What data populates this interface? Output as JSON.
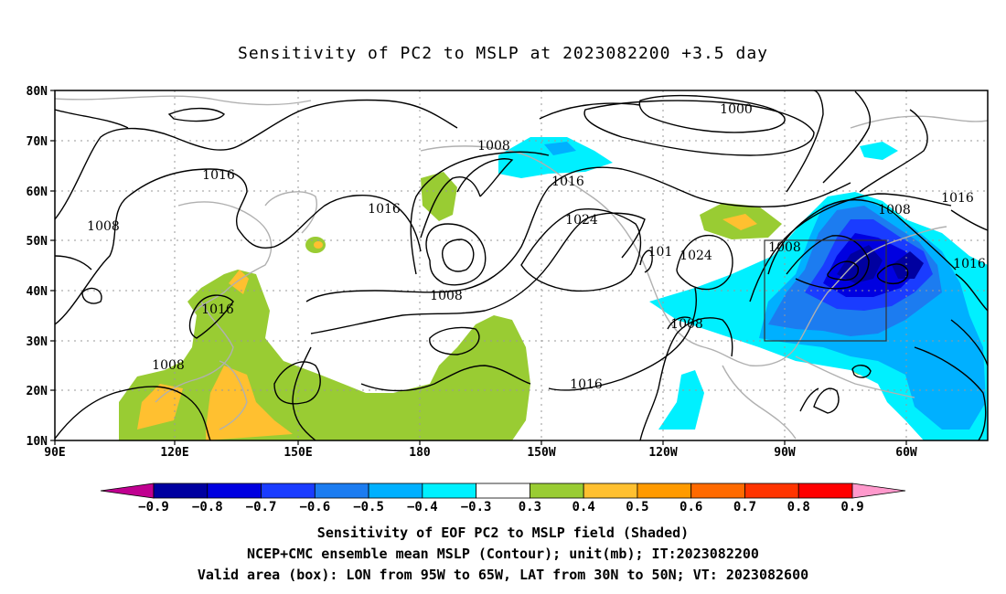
{
  "title": "Sensitivity of PC2 to MSLP at 2023082200 +3.5 day",
  "lat_ticks": [
    "80N",
    "70N",
    "60N",
    "50N",
    "40N",
    "30N",
    "20N",
    "10N"
  ],
  "lon_ticks": [
    "90E",
    "120E",
    "150E",
    "180",
    "150W",
    "120W",
    "90W",
    "60W"
  ],
  "contour_labels": [
    {
      "text": "1000"
    },
    {
      "text": "1008"
    },
    {
      "text": "1016"
    },
    {
      "text": "1008"
    },
    {
      "text": "1016"
    },
    {
      "text": "1016"
    },
    {
      "text": "1008"
    },
    {
      "text": "1016"
    },
    {
      "text": "1024"
    },
    {
      "text": "1008"
    },
    {
      "text": "101"
    },
    {
      "text": "1024"
    },
    {
      "text": "1016"
    },
    {
      "text": "1008"
    },
    {
      "text": "1016"
    },
    {
      "text": "1008"
    },
    {
      "text": "1008"
    },
    {
      "text": "1016"
    }
  ],
  "colorbar": {
    "colors": [
      "#c00090",
      "#0000a0",
      "#0000e0",
      "#1a3cff",
      "#1c7cf0",
      "#00b0ff",
      "#00f0ff",
      "#ffffff",
      "#99cc33",
      "#ffc030",
      "#ff9a00",
      "#ff6a00",
      "#ff3400",
      "#ff0000",
      "#ff99cc"
    ],
    "labels": [
      "-0.9",
      "-0.8",
      "-0.7",
      "-0.6",
      "-0.5",
      "-0.4",
      "-0.3",
      "0.3",
      "0.4",
      "0.5",
      "0.6",
      "0.7",
      "0.8",
      "0.9"
    ]
  },
  "caption": {
    "line1": "Sensitivity of EOF PC2 to MSLP field (Shaded)",
    "line2": "NCEP+CMC ensemble mean MSLP (Contour); unit(mb); IT:2023082200",
    "line3": "Valid area (box): LON from 95W to 65W, LAT from 30N to 50N; VT: 2023082600"
  },
  "valid_box": {
    "lon_min": -95,
    "lon_max": -65,
    "lat_min": 30,
    "lat_max": 50
  }
}
